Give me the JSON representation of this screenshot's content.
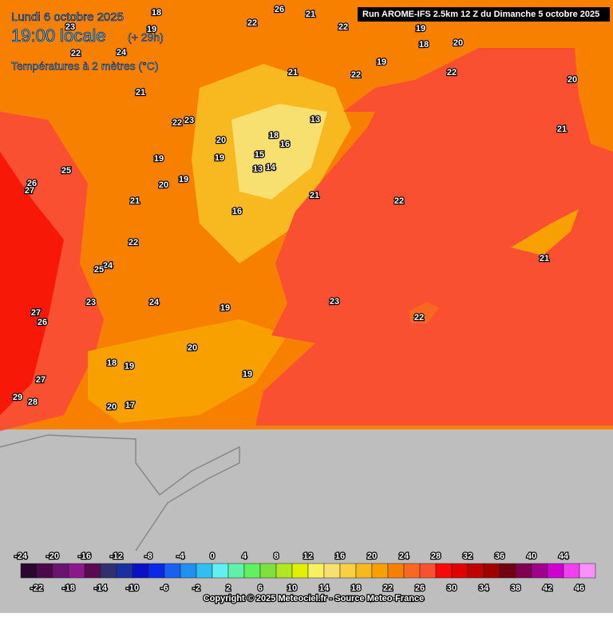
{
  "header": {
    "date": "Lundi 6 octobre 2025",
    "time": "19:00 locale",
    "offset": "(+ 29h)",
    "variable": "Températures à 2 mètres (°C)",
    "run": "Run AROME-IFS 2.5km 12 Z du Dimanche 5 octobre 2025"
  },
  "legend": {
    "top_labels": [
      -24,
      -20,
      -16,
      -12,
      -8,
      -4,
      0,
      4,
      8,
      12,
      16,
      20,
      24,
      28,
      32,
      36,
      40,
      44
    ],
    "bottom_labels": [
      -22,
      -18,
      -14,
      -10,
      -6,
      -2,
      2,
      6,
      10,
      14,
      18,
      22,
      26,
      30,
      34,
      38,
      42,
      46
    ],
    "colors": [
      "#2a0630",
      "#4a0a4a",
      "#6a1470",
      "#8a1a8a",
      "#5a0a50",
      "#2f3070",
      "#1830a0",
      "#0a10c8",
      "#0a28e8",
      "#1860f0",
      "#2090f0",
      "#30c0f0",
      "#60f0f0",
      "#60f0a8",
      "#60f060",
      "#80e040",
      "#b0e820",
      "#e0f000",
      "#f8f060",
      "#f8e070",
      "#f8d040",
      "#f8b820",
      "#f8a000",
      "#f88000",
      "#f86820",
      "#f85030",
      "#f80808",
      "#e00000",
      "#c00000",
      "#a00000",
      "#700010",
      "#800050",
      "#a0008a",
      "#d000d0",
      "#f040f0",
      "#f890f8"
    ]
  },
  "map_labels": [
    22,
    26,
    21,
    22,
    18,
    23,
    19,
    22,
    24,
    21,
    22,
    22,
    20,
    21,
    22,
    23,
    13,
    21,
    20,
    18,
    16,
    19,
    19,
    15,
    13,
    14,
    25,
    20,
    19,
    26,
    27,
    21,
    22,
    21,
    16,
    22,
    24,
    25,
    21,
    23,
    24,
    19,
    23,
    27,
    26,
    22,
    20,
    18,
    19,
    19,
    27,
    29,
    28,
    20,
    17,
    19,
    19,
    20,
    18
  ],
  "copyright": "Copyright © 2025 Meteociel.fr - Source Meteo-France"
}
